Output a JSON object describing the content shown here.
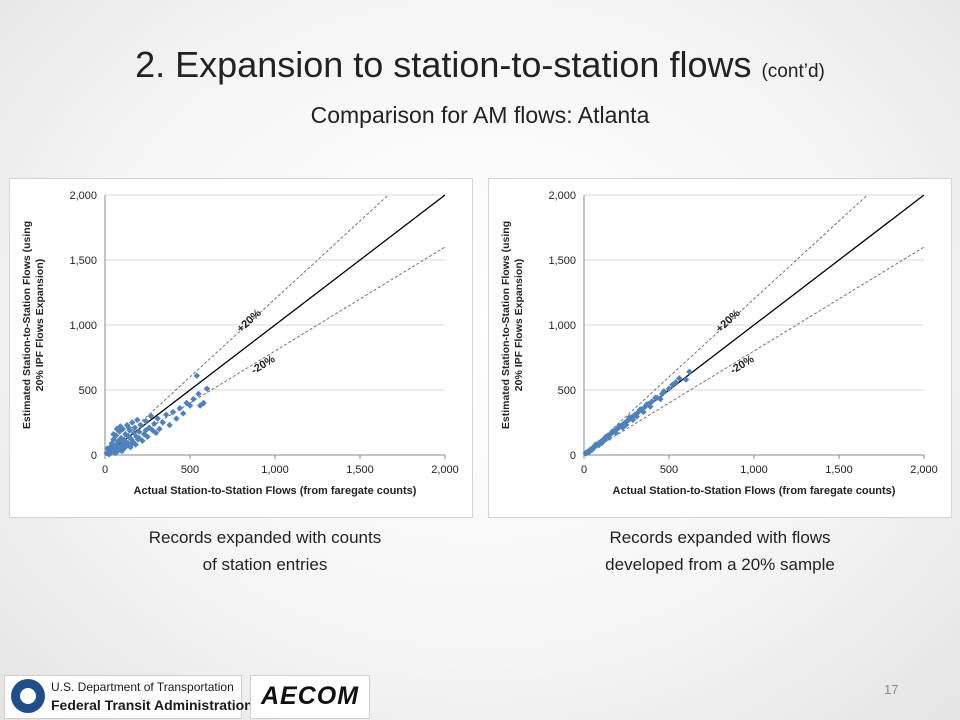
{
  "slide": {
    "title_main": "2. Expansion to station-to-station flows",
    "title_contd": "(cont’d)",
    "subtitle": "Comparison for AM flows: Atlanta",
    "page_number": "17"
  },
  "captions": {
    "left_line1": "Records expanded with counts",
    "left_line2": "of station entries",
    "right_line1": "Records expanded with flows",
    "right_line2": "developed from a 20% sample"
  },
  "logos": {
    "dot_line1": "U.S. Department of Transportation",
    "dot_line2": "Federal Transit Administration",
    "aecom": "AECOM"
  },
  "colors": {
    "marker": "#4f81bd",
    "reference_line": "#000000",
    "band_line": "#666666"
  },
  "chart_data": [
    {
      "type": "scatter",
      "xlabel": "Actual Station-to-Station Flows (from faregate counts)",
      "ylabel_line1": "Estimated Station-to-Station Flows (using",
      "ylabel_line2": "20% IPF Flows Expansion)",
      "xlim": [
        0,
        2000
      ],
      "ylim": [
        0,
        2000
      ],
      "xticks": [
        "0",
        "500",
        "1,000",
        "1,500",
        "2,000"
      ],
      "yticks": [
        "0",
        "500",
        "1,000",
        "1,500",
        "2,000"
      ],
      "grid": true,
      "band_labels": {
        "plus": "+20%",
        "minus": "-20%"
      },
      "reference_lines": [
        {
          "name": "equality",
          "slope": 1.0
        },
        {
          "name": "plus20",
          "slope": 1.2
        },
        {
          "name": "minus20",
          "slope": 0.8
        }
      ],
      "points": [
        [
          10,
          15
        ],
        [
          20,
          10
        ],
        [
          25,
          40
        ],
        [
          30,
          60
        ],
        [
          35,
          20
        ],
        [
          40,
          90
        ],
        [
          45,
          30
        ],
        [
          50,
          120
        ],
        [
          55,
          45
        ],
        [
          60,
          70
        ],
        [
          65,
          150
        ],
        [
          70,
          25
        ],
        [
          75,
          100
        ],
        [
          80,
          60
        ],
        [
          85,
          180
        ],
        [
          90,
          40
        ],
        [
          95,
          130
        ],
        [
          100,
          80
        ],
        [
          105,
          200
        ],
        [
          110,
          50
        ],
        [
          115,
          110
        ],
        [
          120,
          160
        ],
        [
          125,
          70
        ],
        [
          130,
          230
        ],
        [
          135,
          90
        ],
        [
          140,
          140
        ],
        [
          145,
          190
        ],
        [
          150,
          60
        ],
        [
          155,
          120
        ],
        [
          160,
          250
        ],
        [
          165,
          100
        ],
        [
          170,
          170
        ],
        [
          175,
          210
        ],
        [
          180,
          80
        ],
        [
          185,
          140
        ],
        [
          190,
          270
        ],
        [
          195,
          120
        ],
        [
          200,
          180
        ],
        [
          210,
          230
        ],
        [
          220,
          110
        ],
        [
          230,
          160
        ],
        [
          240,
          260
        ],
        [
          250,
          140
        ],
        [
          260,
          210
        ],
        [
          270,
          300
        ],
        [
          280,
          190
        ],
        [
          290,
          240
        ],
        [
          300,
          170
        ],
        [
          310,
          280
        ],
        [
          320,
          200
        ],
        [
          340,
          250
        ],
        [
          360,
          310
        ],
        [
          380,
          230
        ],
        [
          400,
          330
        ],
        [
          420,
          280
        ],
        [
          440,
          360
        ],
        [
          460,
          320
        ],
        [
          480,
          400
        ],
        [
          500,
          380
        ],
        [
          520,
          430
        ],
        [
          540,
          610
        ],
        [
          550,
          470
        ],
        [
          560,
          380
        ],
        [
          580,
          400
        ],
        [
          600,
          510
        ],
        [
          15,
          50
        ],
        [
          25,
          5
        ],
        [
          45,
          85
        ],
        [
          60,
          15
        ],
        [
          80,
          110
        ],
        [
          100,
          30
        ],
        [
          120,
          60
        ],
        [
          140,
          210
        ],
        [
          50,
          160
        ],
        [
          70,
          200
        ],
        [
          160,
          90
        ],
        [
          200,
          130
        ],
        [
          240,
          190
        ],
        [
          90,
          220
        ],
        [
          130,
          90
        ]
      ]
    },
    {
      "type": "scatter",
      "xlabel": "Actual Station-to-Station Flows (from faregate counts)",
      "ylabel_line1": "Estimated Station-to-Station Flows (using",
      "ylabel_line2": "20% IPF Flows Expansion)",
      "xlim": [
        0,
        2000
      ],
      "ylim": [
        0,
        2000
      ],
      "xticks": [
        "0",
        "500",
        "1,000",
        "1,500",
        "2,000"
      ],
      "yticks": [
        "0",
        "500",
        "1,000",
        "1,500",
        "2,000"
      ],
      "grid": true,
      "band_labels": {
        "plus": "+20%",
        "minus": "-20%"
      },
      "reference_lines": [
        {
          "name": "equality",
          "slope": 1.0
        },
        {
          "name": "plus20",
          "slope": 1.2
        },
        {
          "name": "minus20",
          "slope": 0.8
        }
      ],
      "points": [
        [
          10,
          12
        ],
        [
          15,
          14
        ],
        [
          20,
          22
        ],
        [
          25,
          24
        ],
        [
          30,
          33
        ],
        [
          35,
          34
        ],
        [
          40,
          44
        ],
        [
          45,
          43
        ],
        [
          50,
          53
        ],
        [
          55,
          57
        ],
        [
          60,
          62
        ],
        [
          65,
          64
        ],
        [
          70,
          73
        ],
        [
          75,
          77
        ],
        [
          80,
          82
        ],
        [
          85,
          84
        ],
        [
          90,
          94
        ],
        [
          95,
          97
        ],
        [
          100,
          103
        ],
        [
          105,
          106
        ],
        [
          110,
          113
        ],
        [
          115,
          117
        ],
        [
          120,
          123
        ],
        [
          125,
          127
        ],
        [
          130,
          134
        ],
        [
          135,
          137
        ],
        [
          140,
          144
        ],
        [
          145,
          148
        ],
        [
          150,
          154
        ],
        [
          160,
          165
        ],
        [
          170,
          175
        ],
        [
          180,
          185
        ],
        [
          190,
          196
        ],
        [
          200,
          206
        ],
        [
          210,
          216
        ],
        [
          220,
          226
        ],
        [
          230,
          236
        ],
        [
          240,
          247
        ],
        [
          250,
          258
        ],
        [
          260,
          268
        ],
        [
          270,
          278
        ],
        [
          280,
          288
        ],
        [
          290,
          298
        ],
        [
          300,
          310
        ],
        [
          320,
          330
        ],
        [
          340,
          350
        ],
        [
          360,
          372
        ],
        [
          380,
          392
        ],
        [
          400,
          412
        ],
        [
          430,
          440
        ],
        [
          460,
          470
        ],
        [
          500,
          510
        ],
        [
          520,
          540
        ],
        [
          540,
          560
        ],
        [
          560,
          590
        ],
        [
          600,
          580
        ],
        [
          620,
          640
        ],
        [
          12,
          18
        ],
        [
          28,
          20
        ],
        [
          48,
          40
        ],
        [
          68,
          80
        ],
        [
          88,
          76
        ],
        [
          108,
          96
        ],
        [
          128,
          140
        ],
        [
          148,
          132
        ],
        [
          168,
          182
        ],
        [
          188,
          170
        ],
        [
          208,
          224
        ],
        [
          228,
          210
        ],
        [
          248,
          232
        ],
        [
          268,
          290
        ],
        [
          288,
          270
        ],
        [
          310,
          296
        ],
        [
          330,
          350
        ],
        [
          350,
          330
        ],
        [
          370,
          390
        ],
        [
          390,
          372
        ],
        [
          420,
          440
        ],
        [
          450,
          430
        ],
        [
          470,
          490
        ]
      ]
    }
  ]
}
